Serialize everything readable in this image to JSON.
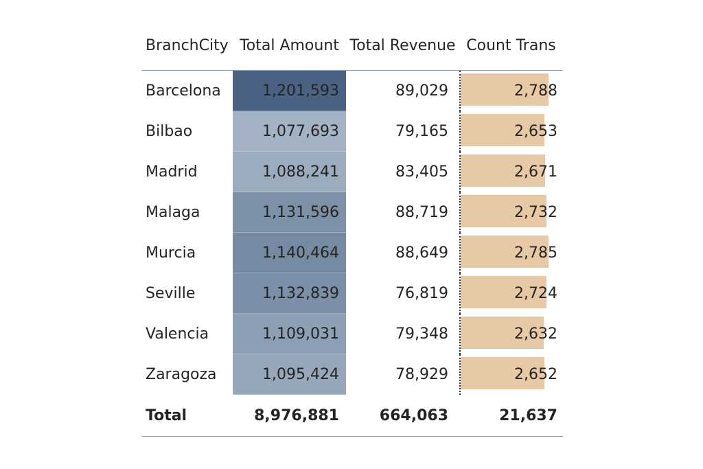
{
  "table": {
    "headers": {
      "city": "BranchCity",
      "amount": "Total Amount",
      "revenue": "Total Revenue",
      "count": "Count Trans"
    },
    "rows": [
      {
        "city": "Barcelona",
        "amount": "1,201,593",
        "revenue": "89,029",
        "count": "2,788",
        "amount_value": 1201593,
        "count_value": 2788
      },
      {
        "city": "Bilbao",
        "amount": "1,077,693",
        "revenue": "79,165",
        "count": "2,653",
        "amount_value": 1077693,
        "count_value": 2653
      },
      {
        "city": "Madrid",
        "amount": "1,088,241",
        "revenue": "83,405",
        "count": "2,671",
        "amount_value": 1088241,
        "count_value": 2671
      },
      {
        "city": "Malaga",
        "amount": "1,131,596",
        "revenue": "88,719",
        "count": "2,732",
        "amount_value": 1131596,
        "count_value": 2732
      },
      {
        "city": "Murcia",
        "amount": "1,140,464",
        "revenue": "88,649",
        "count": "2,785",
        "amount_value": 1140464,
        "count_value": 2785
      },
      {
        "city": "Seville",
        "amount": "1,132,839",
        "revenue": "76,819",
        "count": "2,724",
        "amount_value": 1132839,
        "count_value": 2724
      },
      {
        "city": "Valencia",
        "amount": "1,109,031",
        "revenue": "79,348",
        "count": "2,632",
        "amount_value": 1109031,
        "count_value": 2632
      },
      {
        "city": "Zaragoza",
        "amount": "1,095,424",
        "revenue": "78,929",
        "count": "2,652",
        "amount_value": 1095424,
        "count_value": 2652
      }
    ],
    "total": {
      "label": "Total",
      "amount": "8,976,881",
      "revenue": "664,063",
      "count": "21,637"
    }
  },
  "colors": {
    "amount_scale_low": "#a3b3c5",
    "amount_scale_high": "#4a6283",
    "count_bar": "#e8c9a5"
  }
}
